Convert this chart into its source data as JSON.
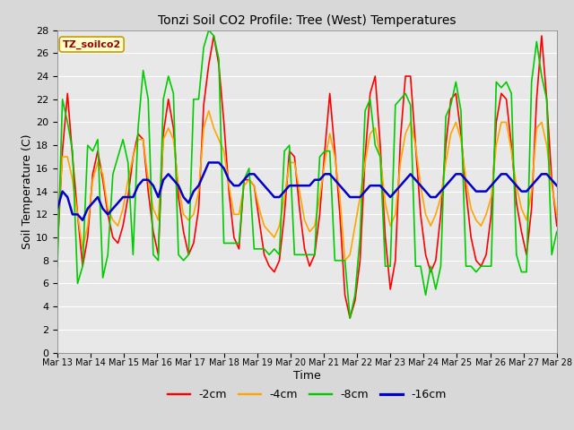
{
  "title": "Tonzi Soil CO2 Profile: Tree (West) Temperatures",
  "xlabel": "Time",
  "ylabel": "Soil Temperature (C)",
  "ylim": [
    0,
    28
  ],
  "yticks": [
    0,
    2,
    4,
    6,
    8,
    10,
    12,
    14,
    16,
    18,
    20,
    22,
    24,
    26,
    28
  ],
  "legend_label": "TZ_soilco2",
  "series_labels": [
    "-2cm",
    "-4cm",
    "-8cm",
    "-16cm"
  ],
  "series_colors": [
    "#ff0000",
    "#ffa500",
    "#00cc00",
    "#0000cc"
  ],
  "series_linewidths": [
    1.2,
    1.2,
    1.2,
    1.8
  ],
  "background_color": "#d8d8d8",
  "plot_bg_color": "#e8e8e8",
  "legend_box_color": "#ffffcc",
  "legend_text_color": "#990000",
  "xtick_labels": [
    "Mar 13",
    "Mar 14",
    "Mar 15",
    "Mar 16",
    "Mar 17",
    "Mar 18",
    "Mar 19",
    "Mar 20",
    "Mar 21",
    "Mar 22",
    "Mar 23",
    "Mar 24",
    "Mar 25",
    "Mar 26",
    "Mar 27",
    "Mar 28"
  ],
  "t_2cm": [
    9.0,
    17.5,
    22.5,
    17.0,
    12.0,
    7.5,
    10.0,
    15.5,
    17.5,
    15.0,
    12.0,
    10.0,
    9.5,
    11.0,
    13.5,
    17.0,
    19.0,
    18.5,
    14.0,
    10.5,
    8.5,
    19.0,
    22.0,
    19.5,
    13.5,
    10.5,
    8.5,
    9.5,
    12.5,
    21.5,
    25.0,
    27.5,
    25.0,
    20.0,
    14.0,
    10.0,
    9.0,
    15.0,
    15.0,
    14.5,
    11.5,
    8.5,
    7.5,
    7.0,
    8.0,
    12.0,
    17.5,
    17.0,
    12.5,
    9.0,
    7.5,
    8.5,
    12.0,
    17.5,
    22.5,
    17.5,
    12.0,
    5.0,
    3.0,
    4.5,
    8.0,
    17.0,
    22.5,
    24.0,
    18.0,
    10.0,
    5.5,
    8.0,
    18.5,
    24.0,
    24.0,
    18.0,
    12.0,
    8.5,
    7.0,
    8.0,
    12.0,
    18.0,
    22.0,
    22.5,
    19.0,
    14.0,
    10.0,
    8.0,
    7.5,
    8.5,
    12.0,
    20.0,
    22.5,
    22.0,
    18.0,
    13.0,
    10.5,
    8.5,
    12.5,
    22.0,
    27.5,
    22.0,
    15.0,
    11.0
  ],
  "t_4cm": [
    11.0,
    17.0,
    17.0,
    15.0,
    12.0,
    9.0,
    11.0,
    15.0,
    16.5,
    15.5,
    12.5,
    11.5,
    11.0,
    12.5,
    15.0,
    17.0,
    18.5,
    18.5,
    15.0,
    12.5,
    11.5,
    18.5,
    19.5,
    18.5,
    14.5,
    12.0,
    11.5,
    12.0,
    14.0,
    19.5,
    21.0,
    19.5,
    18.5,
    17.5,
    14.5,
    12.0,
    12.0,
    14.5,
    15.0,
    14.5,
    12.5,
    11.0,
    10.5,
    10.0,
    11.0,
    13.5,
    16.5,
    16.5,
    14.0,
    11.5,
    10.5,
    11.0,
    13.5,
    16.5,
    19.0,
    17.0,
    13.5,
    8.0,
    8.5,
    11.0,
    13.5,
    16.5,
    19.0,
    19.5,
    17.0,
    13.0,
    11.0,
    12.0,
    16.5,
    19.0,
    20.0,
    18.0,
    14.5,
    12.0,
    11.0,
    12.0,
    13.5,
    16.5,
    19.0,
    20.0,
    18.5,
    15.0,
    12.5,
    11.5,
    11.0,
    12.0,
    13.5,
    18.0,
    20.0,
    20.0,
    17.5,
    14.5,
    12.5,
    11.5,
    14.0,
    19.5,
    20.0,
    18.0,
    14.5,
    12.0
  ],
  "t_8cm": [
    7.5,
    22.0,
    20.0,
    17.5,
    6.0,
    7.5,
    18.0,
    17.5,
    18.5,
    6.5,
    8.5,
    15.5,
    17.0,
    18.5,
    16.5,
    8.5,
    19.5,
    24.5,
    22.0,
    8.5,
    8.0,
    22.0,
    24.0,
    22.5,
    8.5,
    8.0,
    8.5,
    22.0,
    22.0,
    26.5,
    28.0,
    27.5,
    25.5,
    9.5,
    9.5,
    9.5,
    9.5,
    15.0,
    16.0,
    9.0,
    9.0,
    9.0,
    8.5,
    9.0,
    8.5,
    17.5,
    18.0,
    8.5,
    8.5,
    8.5,
    8.5,
    8.5,
    17.0,
    17.5,
    17.5,
    8.0,
    8.0,
    8.0,
    3.0,
    5.0,
    10.0,
    21.0,
    22.0,
    18.0,
    17.0,
    7.5,
    7.5,
    21.5,
    22.0,
    22.5,
    21.5,
    7.5,
    7.5,
    5.0,
    7.5,
    5.5,
    7.5,
    20.5,
    21.5,
    23.5,
    21.0,
    7.5,
    7.5,
    7.0,
    7.5,
    7.5,
    7.5,
    23.5,
    23.0,
    23.5,
    22.5,
    8.5,
    7.0,
    7.0,
    23.5,
    27.0,
    24.0,
    22.0,
    8.5,
    10.5
  ],
  "t_16cm": [
    12.5,
    14.0,
    13.5,
    12.0,
    12.0,
    11.5,
    12.5,
    13.0,
    13.5,
    12.5,
    12.0,
    12.5,
    13.0,
    13.5,
    13.5,
    13.5,
    14.5,
    15.0,
    15.0,
    14.5,
    13.5,
    15.0,
    15.5,
    15.0,
    14.5,
    13.5,
    13.0,
    14.0,
    14.5,
    15.5,
    16.5,
    16.5,
    16.5,
    16.0,
    15.0,
    14.5,
    14.5,
    15.0,
    15.5,
    15.5,
    15.0,
    14.5,
    14.0,
    13.5,
    13.5,
    14.0,
    14.5,
    14.5,
    14.5,
    14.5,
    14.5,
    15.0,
    15.0,
    15.5,
    15.5,
    15.0,
    14.5,
    14.0,
    13.5,
    13.5,
    13.5,
    14.0,
    14.5,
    14.5,
    14.5,
    14.0,
    13.5,
    14.0,
    14.5,
    15.0,
    15.5,
    15.0,
    14.5,
    14.0,
    13.5,
    13.5,
    14.0,
    14.5,
    15.0,
    15.5,
    15.5,
    15.0,
    14.5,
    14.0,
    14.0,
    14.0,
    14.5,
    15.0,
    15.5,
    15.5,
    15.0,
    14.5,
    14.0,
    14.0,
    14.5,
    15.0,
    15.5,
    15.5,
    15.0,
    14.5
  ]
}
